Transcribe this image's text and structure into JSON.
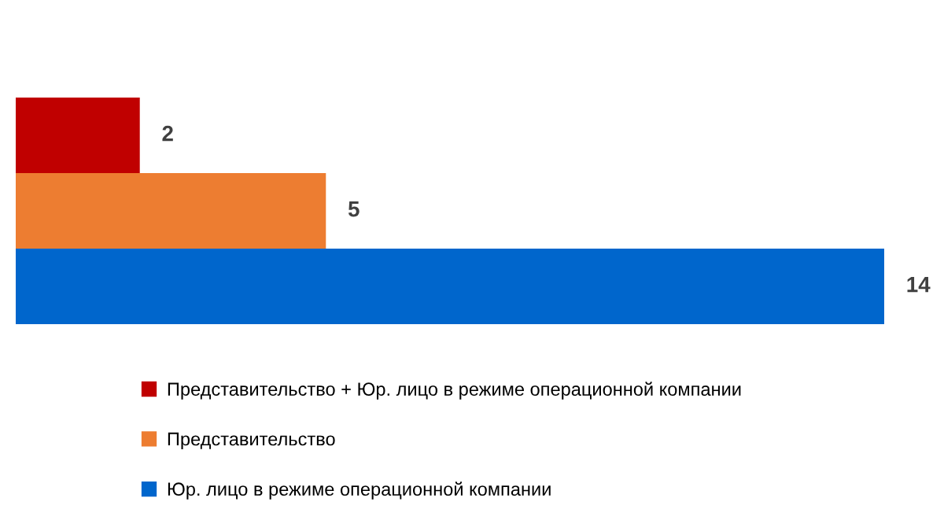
{
  "chart_data": {
    "type": "bar",
    "orientation": "horizontal",
    "categories": [
      null
    ],
    "data_labels": true,
    "legend": "bottom",
    "series": [
      {
        "name": "Представительство + Юр. лицо в режиме операционной компании",
        "color": "#c00000",
        "values": [
          2
        ]
      },
      {
        "name": "Представительство",
        "color": "#ed7d31",
        "values": [
          5
        ]
      },
      {
        "name": "Юр. лицо в режиме операционной компании",
        "color": "#0066cc",
        "values": [
          14
        ]
      }
    ]
  }
}
